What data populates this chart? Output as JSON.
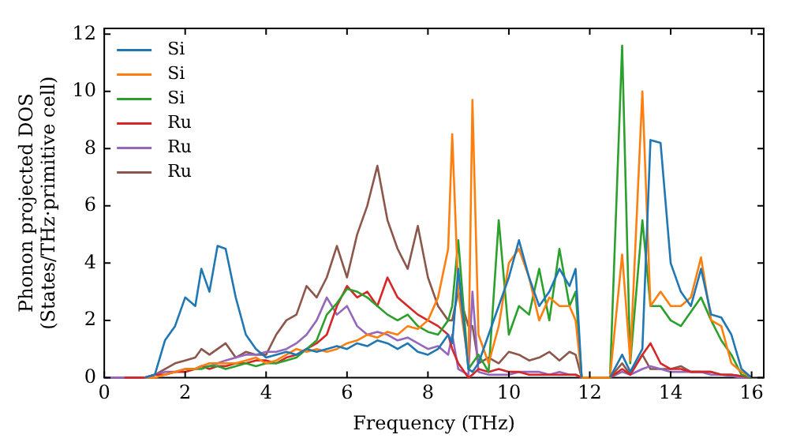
{
  "chart_data": {
    "type": "line",
    "xlabel": "Frequency (THz)",
    "ylabel": "Phonon projected DOS\n(States/THz·primitive cell)",
    "x": [
      0,
      0.5,
      1,
      1.25,
      1.5,
      1.75,
      2,
      2.25,
      2.4,
      2.6,
      2.8,
      3,
      3.25,
      3.5,
      3.75,
      4,
      4.25,
      4.5,
      4.75,
      5,
      5.25,
      5.5,
      5.75,
      6,
      6.25,
      6.5,
      6.75,
      7,
      7.25,
      7.5,
      7.75,
      8,
      8.25,
      8.5,
      8.6,
      8.75,
      9,
      9.1,
      9.25,
      9.5,
      9.75,
      10,
      10.25,
      10.5,
      10.75,
      11,
      11.25,
      11.5,
      11.65,
      11.8,
      12.25,
      12.5,
      12.8,
      13,
      13.3,
      13.5,
      13.75,
      14,
      14.25,
      14.5,
      14.75,
      15,
      15.25,
      15.5,
      15.75,
      16
    ],
    "series": [
      {
        "name": "Si",
        "color": "#1f77b4",
        "values": [
          null,
          null,
          0,
          0.1,
          1.3,
          1.8,
          2.8,
          2.5,
          3.8,
          3.0,
          4.6,
          4.5,
          2.8,
          1.5,
          1.0,
          0.7,
          0.8,
          0.9,
          0.8,
          1.0,
          0.9,
          1.0,
          1.1,
          1.0,
          1.2,
          1.1,
          1.3,
          1.2,
          1.0,
          1.2,
          0.9,
          0.8,
          1.0,
          1.5,
          1.2,
          3.8,
          0.3,
          0.2,
          0.5,
          1.5,
          2.5,
          3.5,
          4.8,
          3.5,
          2.5,
          3.0,
          3.8,
          3.2,
          3.8,
          0,
          null,
          0,
          0.8,
          0.2,
          1.0,
          8.3,
          8.2,
          4.0,
          3.0,
          2.5,
          3.8,
          2.2,
          2.1,
          1.5,
          0.3,
          0
        ]
      },
      {
        "name": "Si",
        "color": "#ff7f0e",
        "values": [
          null,
          null,
          0,
          0,
          0.1,
          0.2,
          0.3,
          0.3,
          0.4,
          0.5,
          0.5,
          0.5,
          0.5,
          0.6,
          0.7,
          0.5,
          0.6,
          0.8,
          1.0,
          0.9,
          1.0,
          0.9,
          1.0,
          1.2,
          1.3,
          1.5,
          1.4,
          1.6,
          1.5,
          1.8,
          1.7,
          2.0,
          2.8,
          4.5,
          8.5,
          3.0,
          0.5,
          9.7,
          1.5,
          0.5,
          1.8,
          4.0,
          4.5,
          3.5,
          2.0,
          2.8,
          2.5,
          2.5,
          2.0,
          0,
          0,
          0,
          4.3,
          0.6,
          10.0,
          2.5,
          3.0,
          2.5,
          2.5,
          2.8,
          4.2,
          2.0,
          1.8,
          0.5,
          0.2,
          0
        ]
      },
      {
        "name": "Si",
        "color": "#2ca02c",
        "values": [
          null,
          null,
          null,
          null,
          null,
          null,
          0.3,
          0.3,
          0.3,
          0.4,
          0.4,
          0.3,
          0.4,
          0.5,
          0.4,
          0.5,
          0.5,
          0.6,
          0.7,
          1.0,
          1.3,
          2.2,
          2.6,
          3.1,
          3.0,
          2.8,
          2.5,
          2.2,
          2.0,
          2.2,
          1.8,
          1.6,
          1.5,
          2.0,
          2.5,
          4.8,
          0.3,
          0.5,
          0.8,
          0.2,
          5.5,
          1.5,
          2.5,
          2.2,
          3.8,
          2.0,
          4.5,
          2.5,
          3.0,
          0,
          0,
          0,
          11.6,
          0.5,
          5.5,
          2.5,
          2.5,
          2.0,
          1.8,
          2.3,
          2.8,
          2.0,
          1.3,
          0.8,
          0.1,
          0
        ]
      },
      {
        "name": "Ru",
        "color": "#d62728",
        "values": [
          null,
          0,
          0,
          0.1,
          0.1,
          0.2,
          0.2,
          0.3,
          0.4,
          0.3,
          0.4,
          0.4,
          0.5,
          0.5,
          0.6,
          0.6,
          0.5,
          0.7,
          0.8,
          1.0,
          1.2,
          1.5,
          2.5,
          3.2,
          2.8,
          3.0,
          2.5,
          3.5,
          2.8,
          2.5,
          2.2,
          2.0,
          1.8,
          1.5,
          1.0,
          0.5,
          0,
          0.1,
          0.3,
          0.2,
          0.3,
          0.2,
          0.2,
          0.1,
          0.1,
          0.1,
          0.1,
          0.1,
          0.1,
          0,
          0,
          0,
          0.3,
          0.1,
          0.8,
          1.2,
          0.5,
          0.3,
          0.3,
          0.2,
          0.2,
          0.2,
          0.1,
          0.1,
          0.05,
          0
        ]
      },
      {
        "name": "Ru",
        "color": "#9467bd",
        "values": [
          0,
          0,
          0,
          0.1,
          0.2,
          0.2,
          0.3,
          0.3,
          0.4,
          0.4,
          0.5,
          0.6,
          0.7,
          0.8,
          0.8,
          0.9,
          0.9,
          1.0,
          1.2,
          1.5,
          2.0,
          2.8,
          2.2,
          2.5,
          1.8,
          1.5,
          1.6,
          1.5,
          1.3,
          1.4,
          1.2,
          1.0,
          1.1,
          0.8,
          1.5,
          0.3,
          0.1,
          3.0,
          0.2,
          0.1,
          0.1,
          0.1,
          0.2,
          0.2,
          0.2,
          0.1,
          0.2,
          0.1,
          0.1,
          0,
          0,
          0,
          0.2,
          0.1,
          0.3,
          0.4,
          0.3,
          0.2,
          0.2,
          0.2,
          0.2,
          0.1,
          0.1,
          0.05,
          0,
          0
        ]
      },
      {
        "name": "Ru",
        "color": "#8c564b",
        "values": [
          0,
          0,
          0,
          0.1,
          0.3,
          0.5,
          0.6,
          0.7,
          1.0,
          0.8,
          1.0,
          1.2,
          0.7,
          0.9,
          0.8,
          0.8,
          1.5,
          2.0,
          2.2,
          3.2,
          2.8,
          3.5,
          4.6,
          3.5,
          5.0,
          6.0,
          7.4,
          5.5,
          4.5,
          3.8,
          5.3,
          3.5,
          2.5,
          2.0,
          2.0,
          3.0,
          1.8,
          1.8,
          0.5,
          0.7,
          0.5,
          0.9,
          0.8,
          0.6,
          0.7,
          0.9,
          0.6,
          0.9,
          0.8,
          0,
          0,
          0,
          0.5,
          0.1,
          0.8,
          0.3,
          0.3,
          0.3,
          0.4,
          0.2,
          0.2,
          0.2,
          0.1,
          0.1,
          0.05,
          0
        ]
      }
    ],
    "xlim": [
      0,
      16.3
    ],
    "xticks": [
      0,
      2,
      4,
      6,
      8,
      10,
      12,
      14,
      16
    ],
    "ylim": [
      0,
      12.2
    ],
    "yticks": [
      0,
      2,
      4,
      6,
      8,
      10,
      12
    ],
    "grid": false,
    "legend": "top left",
    "marker": "none",
    "line_style": "solid"
  }
}
